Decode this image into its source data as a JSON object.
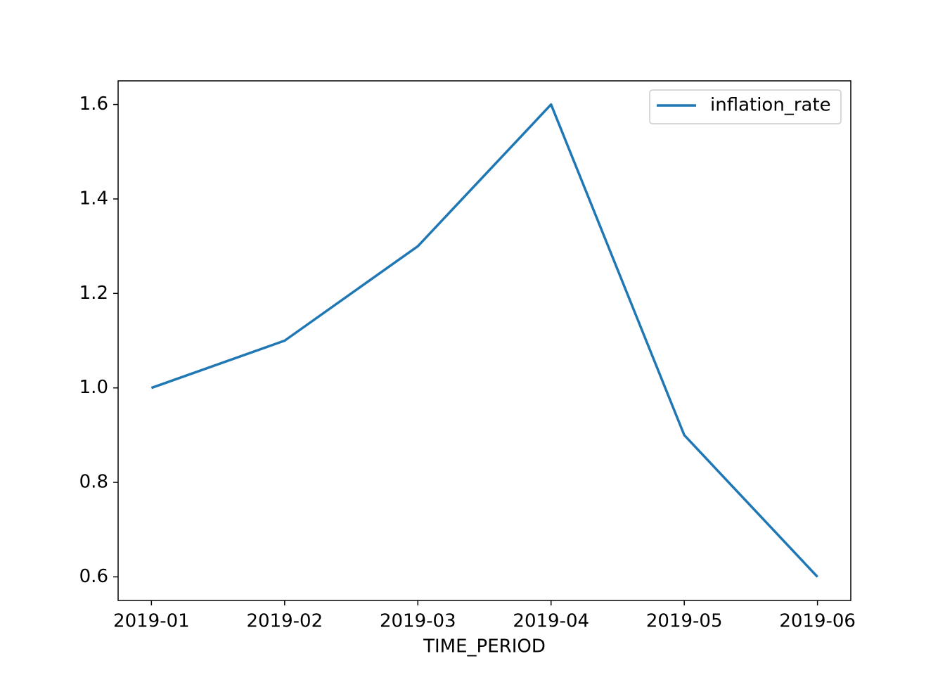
{
  "chart_data": {
    "type": "line",
    "x_label": "TIME_PERIOD",
    "categories": [
      "2019-01",
      "2019-02",
      "2019-03",
      "2019-04",
      "2019-05",
      "2019-06"
    ],
    "series": [
      {
        "name": "inflation_rate",
        "color": "#1f77b4",
        "values": [
          1.0,
          1.1,
          1.3,
          1.6,
          0.9,
          0.6
        ]
      }
    ],
    "ylim": [
      0.55,
      1.65
    ],
    "yticks": [
      0.6,
      0.8,
      {
        "value": 1,
        "label": "1.0"
      },
      1.2,
      1.4,
      1.6
    ],
    "legend": "upper-right"
  }
}
